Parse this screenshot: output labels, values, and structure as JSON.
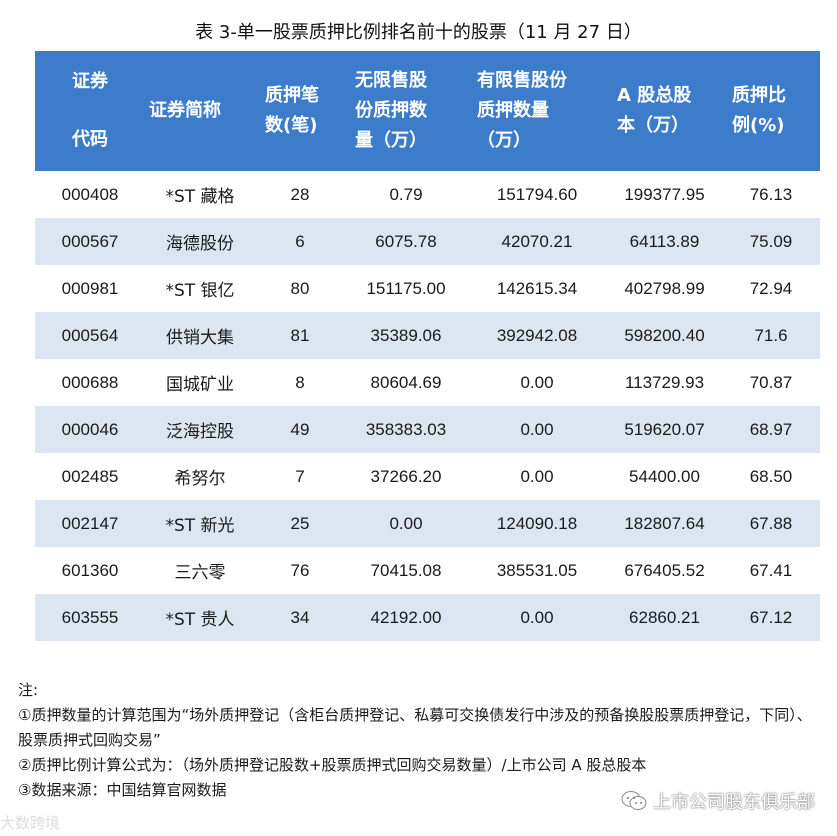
{
  "title": "表 3-单一股票质押比例排名前十的股票（11 月 27 日）",
  "table": {
    "headers": [
      "证券代码",
      "证券简称",
      "质押笔数(笔)",
      "无限售股份质押数量（万）",
      "有限售股份质押数量（万）",
      "A 股总股本（万）",
      "质押比例(%)"
    ],
    "header_lines": [
      [
        "证券",
        "代码"
      ],
      [
        "证券简称"
      ],
      [
        "质押笔",
        "数(笔)"
      ],
      [
        "无限售股",
        "份质押数",
        "量（万）"
      ],
      [
        "有限售股份",
        "质押数量",
        "（万）"
      ],
      [
        "A 股总股",
        "本（万）"
      ],
      [
        "质押比",
        "例(%)"
      ]
    ],
    "rows": [
      [
        "000408",
        "*ST 藏格",
        "28",
        "0.79",
        "151794.60",
        "199377.95",
        "76.13"
      ],
      [
        "000567",
        "海德股份",
        "6",
        "6075.78",
        "42070.21",
        "64113.89",
        "75.09"
      ],
      [
        "000981",
        "*ST 银亿",
        "80",
        "151175.00",
        "142615.34",
        "402798.99",
        "72.94"
      ],
      [
        "000564",
        "供销大集",
        "81",
        "35389.06",
        "392942.08",
        "598200.40",
        "71.6"
      ],
      [
        "000688",
        "国城矿业",
        "8",
        "80604.69",
        "0.00",
        "113729.93",
        "70.87"
      ],
      [
        "000046",
        "泛海控股",
        "49",
        "358383.03",
        "0.00",
        "519620.07",
        "68.97"
      ],
      [
        "002485",
        "希努尔",
        "7",
        "37266.20",
        "0.00",
        "54400.00",
        "68.50"
      ],
      [
        "002147",
        "*ST 新光",
        "25",
        "0.00",
        "124090.18",
        "182807.64",
        "67.88"
      ],
      [
        "601360",
        "三六零",
        "76",
        "70415.08",
        "385531.05",
        "676405.52",
        "67.41"
      ],
      [
        "603555",
        "*ST 贵人",
        "34",
        "42192.00",
        "0.00",
        "62860.21",
        "67.12"
      ]
    ]
  },
  "notes": {
    "heading": "注:",
    "items": [
      "①质押数量的计算范围为“场外质押登记（含柜台质押登记、私募可交换债发行中涉及的预备换股股票质押登记，下同）、股票质押式回购交易”",
      "②质押比例计算公式为：（场外质押登记股数+股票质押式回购交易数量）/上市公司 A 股总股本",
      "③数据来源：中国结算官网数据"
    ]
  },
  "watermark": {
    "left": "大数跨境",
    "right": "上市公司股东俱乐部",
    "icon": "wechat-icon"
  },
  "colors": {
    "header_bg": "#3c7ccb",
    "header_text": "#ffffff",
    "alt_row_bg": "#dce6f3"
  }
}
